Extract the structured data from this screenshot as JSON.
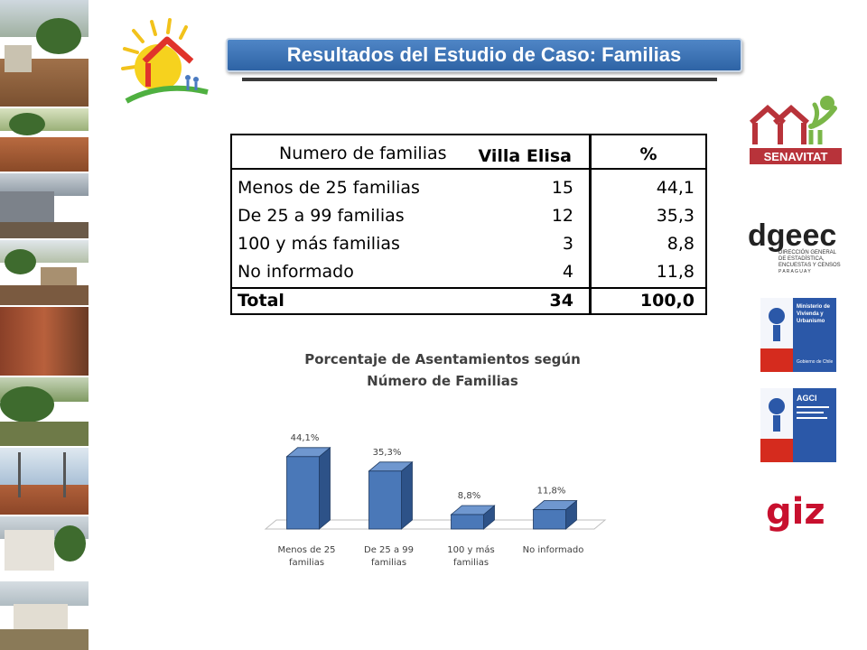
{
  "title": "Resultados del Estudio de Caso: Familias",
  "table": {
    "headers": [
      "Numero de familias",
      "Villa Elisa",
      "%"
    ],
    "rows": [
      {
        "label": "Menos de 25 familias",
        "value": "15",
        "percent": "44,1"
      },
      {
        "label": "De 25 a 99 familias",
        "value": "12",
        "percent": "35,3"
      },
      {
        "label": "100 y más familias",
        "value": "3",
        "percent": "8,8"
      },
      {
        "label": "No informado",
        "value": "4",
        "percent": "11,8"
      }
    ],
    "total": {
      "label": "Total",
      "value": "34",
      "percent": "100,0"
    }
  },
  "chart_data": {
    "type": "bar",
    "title_lines": [
      "Porcentaje de Asentamientos según",
      "Número de Familias"
    ],
    "categories": [
      [
        "Menos de 25",
        "familias"
      ],
      [
        "De 25 a 99",
        "familias"
      ],
      [
        "100 y más",
        "familias"
      ],
      [
        "No informado"
      ]
    ],
    "values": [
      44.1,
      35.3,
      8.8,
      11.8
    ],
    "data_labels": [
      "44,1%",
      "35,3%",
      "8,8%",
      "11,8%"
    ],
    "ylim": [
      0,
      50
    ],
    "bar_color": "#4a78b8"
  },
  "logos": {
    "senavitat": "SENAVITAT",
    "dgeec": "dgeec",
    "dgeec_sub": [
      "DIRECCIÓN GENERAL",
      "DE ESTADÍSTICA,",
      "ENCUESTAS Y CENSOS"
    ],
    "dgeec_country": "P A R A G U A Y",
    "minvu": [
      "Ministerio de",
      "Vivienda y",
      "Urbanismo"
    ],
    "minvu_gov": "Gobierno de Chile",
    "agci": "AGCI",
    "giz": "giz"
  },
  "colors": {
    "banner": "#3a72b7",
    "senavitat_red": "#b8333a",
    "senavitat_green": "#7ab648",
    "chile_blue": "#2b58a8",
    "chile_red": "#d52b1e",
    "giz_red": "#c8102e"
  }
}
